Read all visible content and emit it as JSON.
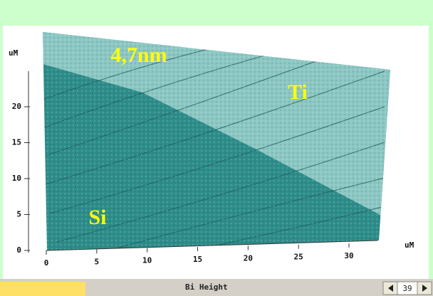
{
  "image": {
    "annotations": {
      "thickness": "4,7nm",
      "upper_region": "Ti",
      "lower_region": "Si"
    }
  },
  "y_axis": {
    "unit": "uM",
    "ticks": [
      0,
      5,
      10,
      15,
      20
    ]
  },
  "x_axis": {
    "unit": "uM",
    "ticks": [
      0,
      5,
      10,
      15,
      20,
      25,
      30
    ]
  },
  "status_bar": {
    "channel": "Bi Height",
    "page": "39"
  }
}
